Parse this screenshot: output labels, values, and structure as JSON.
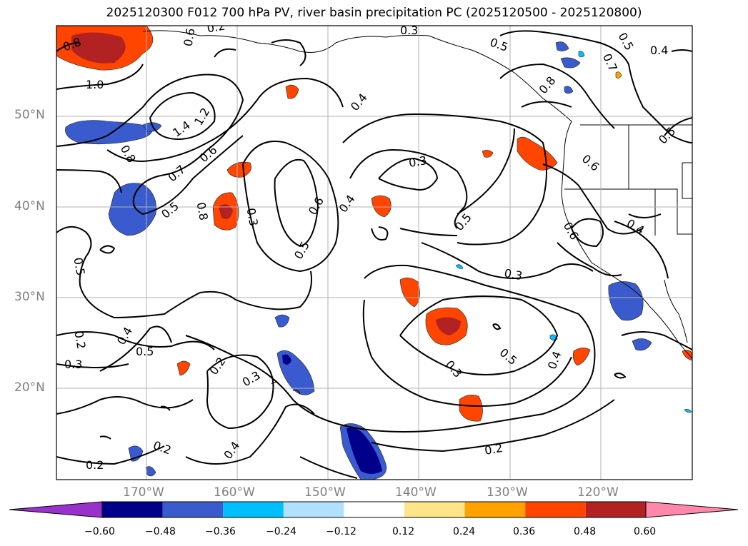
{
  "title": "2025120300 F012 700 hPa PV, river basin precipitation PC (2025120500 - 2025120800)",
  "lat_labels": [
    "50°N",
    "40°N",
    "30°N",
    "20°N"
  ],
  "lon_labels": [
    "170°W",
    "160°W",
    "150°W",
    "140°W",
    "130°W",
    "120°W"
  ],
  "colorbar": {
    "ticks": [
      "−0.60",
      "−0.48",
      "−0.36",
      "−0.24",
      "−0.12",
      "0.12",
      "0.24",
      "0.36",
      "0.48",
      "0.60"
    ],
    "colors": [
      "#9932cc",
      "#00008b",
      "#3a5bcd",
      "#00bfff",
      "#b0e2ff",
      "#ffffff",
      "#ffe48a",
      "#ffa200",
      "#ff4500",
      "#b22222",
      "#ff88aa"
    ]
  },
  "contour_labels": [
    "0.8",
    "1.0",
    "1.4",
    "1.2",
    "0.6",
    "0.5",
    "0.8",
    "0.7",
    "0.5",
    "0.6",
    "0.8",
    "0.3",
    "0.3",
    "0.5",
    "0.6",
    "0.4",
    "0.4",
    "0.3",
    "0.5",
    "0.5",
    "0.5",
    "0.7",
    "0.4",
    "0.8",
    "0.6",
    "0.6",
    "0.4",
    "0.5",
    "0.3",
    "0.5",
    "0.4",
    "0.3",
    "0.2",
    "0.4",
    "0.5",
    "0.2",
    "0.3",
    "0.2",
    "0.3",
    "0.2",
    "0.4",
    "0.2",
    "0.2"
  ],
  "colors": {
    "contour": "#000000",
    "grid": "#b0b0b0",
    "coast": "#000000",
    "axis_label": "#808080"
  }
}
